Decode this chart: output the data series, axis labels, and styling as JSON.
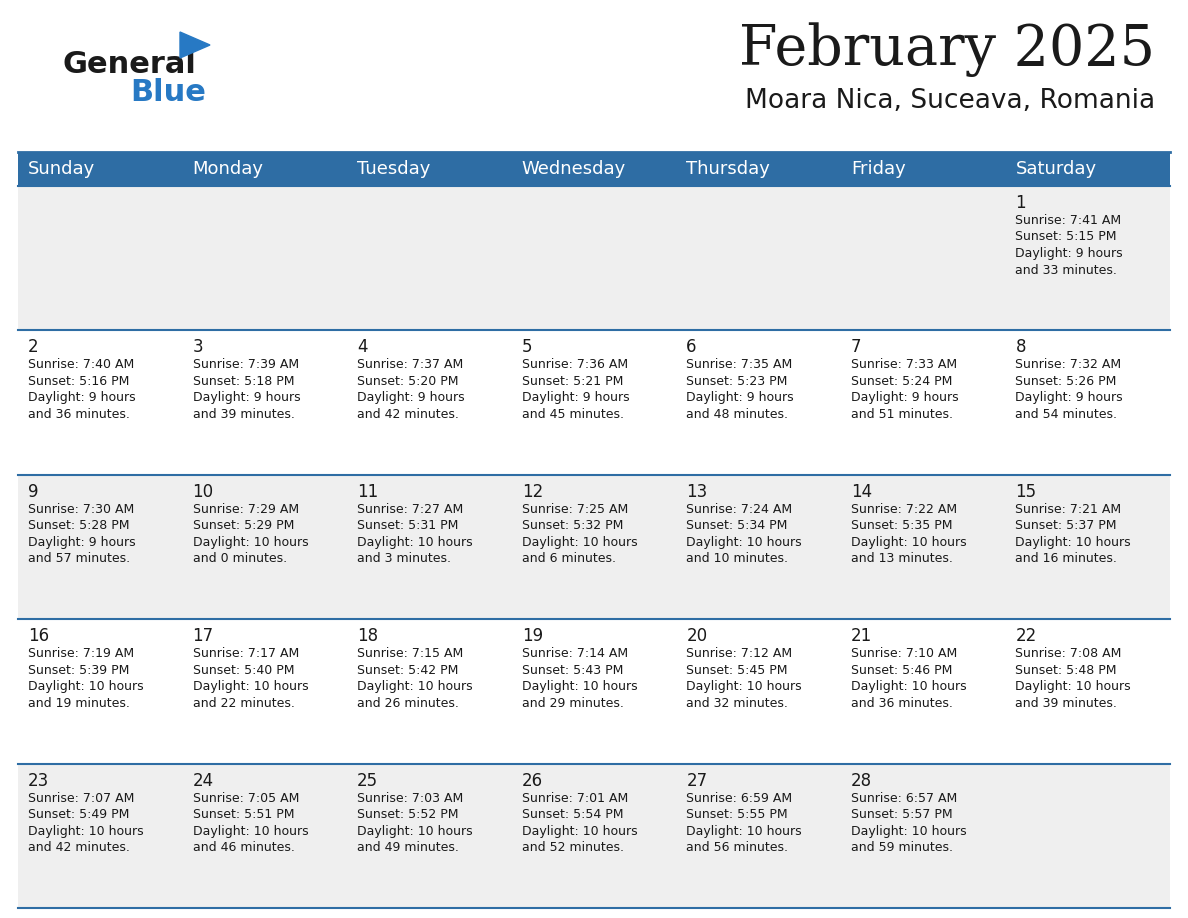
{
  "title": "February 2025",
  "subtitle": "Moara Nica, Suceava, Romania",
  "header_color": "#2E6DA4",
  "header_text_color": "#FFFFFF",
  "row_bg_even": "#EFEFEF",
  "row_bg_odd": "#FFFFFF",
  "cell_border_color": "#2E6DA4",
  "day_headers": [
    "Sunday",
    "Monday",
    "Tuesday",
    "Wednesday",
    "Thursday",
    "Friday",
    "Saturday"
  ],
  "weeks": [
    [
      {
        "day": null,
        "sunrise": null,
        "sunset": null,
        "daylight": null
      },
      {
        "day": null,
        "sunrise": null,
        "sunset": null,
        "daylight": null
      },
      {
        "day": null,
        "sunrise": null,
        "sunset": null,
        "daylight": null
      },
      {
        "day": null,
        "sunrise": null,
        "sunset": null,
        "daylight": null
      },
      {
        "day": null,
        "sunrise": null,
        "sunset": null,
        "daylight": null
      },
      {
        "day": null,
        "sunrise": null,
        "sunset": null,
        "daylight": null
      },
      {
        "day": 1,
        "sunrise": "7:41 AM",
        "sunset": "5:15 PM",
        "daylight": "9 hours\nand 33 minutes."
      }
    ],
    [
      {
        "day": 2,
        "sunrise": "7:40 AM",
        "sunset": "5:16 PM",
        "daylight": "9 hours\nand 36 minutes."
      },
      {
        "day": 3,
        "sunrise": "7:39 AM",
        "sunset": "5:18 PM",
        "daylight": "9 hours\nand 39 minutes."
      },
      {
        "day": 4,
        "sunrise": "7:37 AM",
        "sunset": "5:20 PM",
        "daylight": "9 hours\nand 42 minutes."
      },
      {
        "day": 5,
        "sunrise": "7:36 AM",
        "sunset": "5:21 PM",
        "daylight": "9 hours\nand 45 minutes."
      },
      {
        "day": 6,
        "sunrise": "7:35 AM",
        "sunset": "5:23 PM",
        "daylight": "9 hours\nand 48 minutes."
      },
      {
        "day": 7,
        "sunrise": "7:33 AM",
        "sunset": "5:24 PM",
        "daylight": "9 hours\nand 51 minutes."
      },
      {
        "day": 8,
        "sunrise": "7:32 AM",
        "sunset": "5:26 PM",
        "daylight": "9 hours\nand 54 minutes."
      }
    ],
    [
      {
        "day": 9,
        "sunrise": "7:30 AM",
        "sunset": "5:28 PM",
        "daylight": "9 hours\nand 57 minutes."
      },
      {
        "day": 10,
        "sunrise": "7:29 AM",
        "sunset": "5:29 PM",
        "daylight": "10 hours\nand 0 minutes."
      },
      {
        "day": 11,
        "sunrise": "7:27 AM",
        "sunset": "5:31 PM",
        "daylight": "10 hours\nand 3 minutes."
      },
      {
        "day": 12,
        "sunrise": "7:25 AM",
        "sunset": "5:32 PM",
        "daylight": "10 hours\nand 6 minutes."
      },
      {
        "day": 13,
        "sunrise": "7:24 AM",
        "sunset": "5:34 PM",
        "daylight": "10 hours\nand 10 minutes."
      },
      {
        "day": 14,
        "sunrise": "7:22 AM",
        "sunset": "5:35 PM",
        "daylight": "10 hours\nand 13 minutes."
      },
      {
        "day": 15,
        "sunrise": "7:21 AM",
        "sunset": "5:37 PM",
        "daylight": "10 hours\nand 16 minutes."
      }
    ],
    [
      {
        "day": 16,
        "sunrise": "7:19 AM",
        "sunset": "5:39 PM",
        "daylight": "10 hours\nand 19 minutes."
      },
      {
        "day": 17,
        "sunrise": "7:17 AM",
        "sunset": "5:40 PM",
        "daylight": "10 hours\nand 22 minutes."
      },
      {
        "day": 18,
        "sunrise": "7:15 AM",
        "sunset": "5:42 PM",
        "daylight": "10 hours\nand 26 minutes."
      },
      {
        "day": 19,
        "sunrise": "7:14 AM",
        "sunset": "5:43 PM",
        "daylight": "10 hours\nand 29 minutes."
      },
      {
        "day": 20,
        "sunrise": "7:12 AM",
        "sunset": "5:45 PM",
        "daylight": "10 hours\nand 32 minutes."
      },
      {
        "day": 21,
        "sunrise": "7:10 AM",
        "sunset": "5:46 PM",
        "daylight": "10 hours\nand 36 minutes."
      },
      {
        "day": 22,
        "sunrise": "7:08 AM",
        "sunset": "5:48 PM",
        "daylight": "10 hours\nand 39 minutes."
      }
    ],
    [
      {
        "day": 23,
        "sunrise": "7:07 AM",
        "sunset": "5:49 PM",
        "daylight": "10 hours\nand 42 minutes."
      },
      {
        "day": 24,
        "sunrise": "7:05 AM",
        "sunset": "5:51 PM",
        "daylight": "10 hours\nand 46 minutes."
      },
      {
        "day": 25,
        "sunrise": "7:03 AM",
        "sunset": "5:52 PM",
        "daylight": "10 hours\nand 49 minutes."
      },
      {
        "day": 26,
        "sunrise": "7:01 AM",
        "sunset": "5:54 PM",
        "daylight": "10 hours\nand 52 minutes."
      },
      {
        "day": 27,
        "sunrise": "6:59 AM",
        "sunset": "5:55 PM",
        "daylight": "10 hours\nand 56 minutes."
      },
      {
        "day": 28,
        "sunrise": "6:57 AM",
        "sunset": "5:57 PM",
        "daylight": "10 hours\nand 59 minutes."
      },
      {
        "day": null,
        "sunrise": null,
        "sunset": null,
        "daylight": null
      }
    ]
  ],
  "logo_color_general": "#1a1a1a",
  "logo_color_blue": "#2779C4",
  "logo_triangle_color": "#2779C4",
  "title_fontsize": 40,
  "subtitle_fontsize": 19,
  "cell_text_fontsize": 9,
  "day_number_fontsize": 12,
  "header_fontsize": 13
}
